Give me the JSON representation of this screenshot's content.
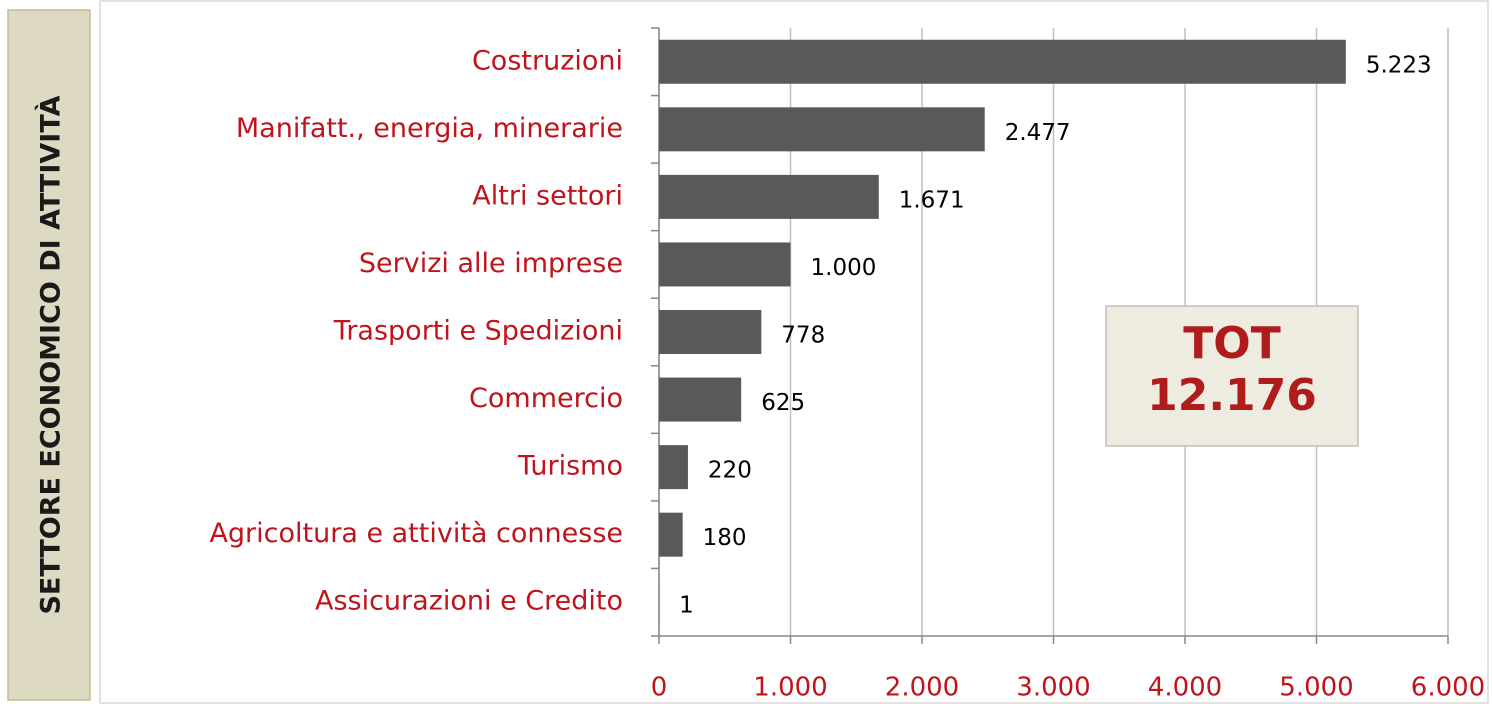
{
  "chart_data": {
    "type": "bar",
    "orientation": "horizontal",
    "y_label": "SETTORE ECONOMICO DI ATTIVITÀ",
    "categories": [
      "Costruzioni",
      "Manifatt., energia, minerarie",
      "Altri settori",
      "Servizi alle imprese",
      "Trasporti e Spedizioni",
      "Commercio",
      "Turismo",
      "Agricoltura e attività connesse",
      "Assicurazioni e Credito"
    ],
    "values": [
      5223,
      2477,
      1671,
      1000,
      778,
      625,
      220,
      180,
      1
    ],
    "value_labels": [
      "5.223",
      "2.477",
      "1.671",
      "1.000",
      "778",
      "625",
      "220",
      "180",
      "1"
    ],
    "color": "#595959",
    "xlim": [
      0,
      6000
    ],
    "xticks": [
      0,
      {
        "value": 1000,
        "label": "1.000"
      },
      {
        "value": 2000,
        "label": "2.000"
      },
      {
        "value": 3000,
        "label": "3.000"
      },
      {
        "value": 4000,
        "label": "4.000"
      },
      {
        "value": 5000,
        "label": "5.000"
      },
      {
        "value": 6000,
        "label": "6.000"
      }
    ],
    "grid": true,
    "annotation": [
      "TOT",
      "12.176"
    ]
  }
}
